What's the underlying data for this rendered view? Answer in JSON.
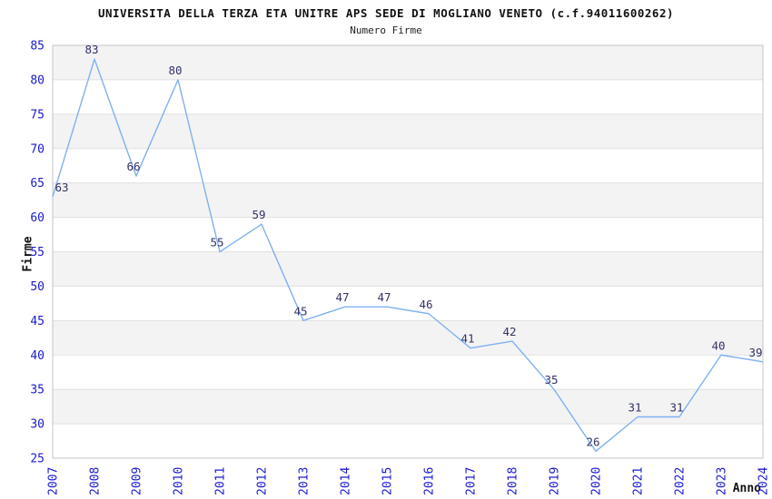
{
  "chart_data": {
    "type": "line",
    "title": "UNIVERSITA DELLA TERZA ETA UNITRE APS SEDE DI MOGLIANO VENETO (c.f.94011600262)",
    "subtitle": "Numero Firme",
    "xlabel": "Anno",
    "ylabel": "Firme",
    "categories": [
      "2007",
      "2008",
      "2009",
      "2010",
      "2011",
      "2012",
      "2013",
      "2014",
      "2015",
      "2016",
      "2017",
      "2018",
      "2019",
      "2020",
      "2021",
      "2022",
      "2023",
      "2024"
    ],
    "series": [
      {
        "name": "Numero Firme",
        "values": [
          63,
          83,
          66,
          80,
          55,
          59,
          45,
          47,
          47,
          46,
          41,
          42,
          35,
          26,
          31,
          31,
          40,
          39
        ]
      }
    ],
    "ylim": [
      25,
      85
    ],
    "ytick_step": 5,
    "grid": true,
    "legend": "none",
    "show_point_labels": true,
    "band_style": "alternating-horizontal",
    "colors": {
      "line": "#7FB1F0",
      "tick_label": "#1A1ACF",
      "value_label": "#333366",
      "band_gray": "#F3F3F3",
      "band_white": "#FFFFFF",
      "grid_line": "#E0E0E0",
      "plot_border": "#C6C6C6",
      "title": "#111111",
      "axis_title": "#111111",
      "background": "#FFFFFF"
    }
  }
}
